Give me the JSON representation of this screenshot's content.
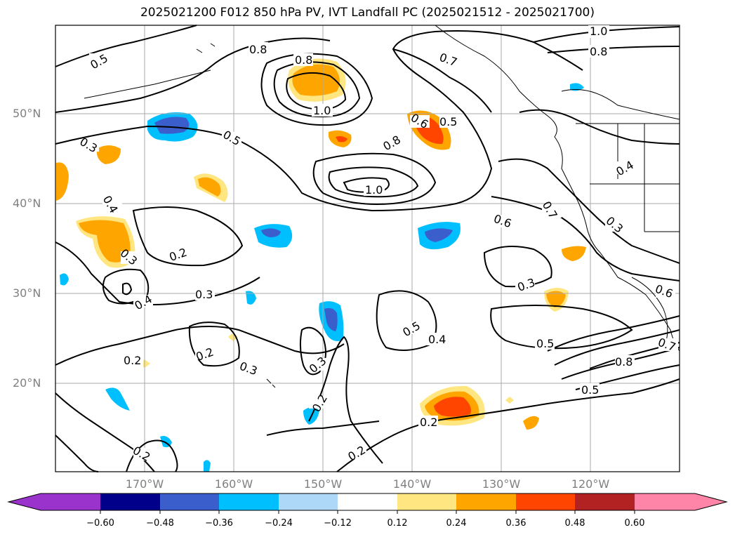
{
  "title": "2025021200 F012 850 hPa PV, IVT Landfall PC (2025021512 - 2025021700)",
  "lat_labels": [
    "50°N",
    "40°N",
    "30°N",
    "20°N"
  ],
  "lon_labels": [
    "170°W",
    "160°W",
    "150°W",
    "140°W",
    "130°W",
    "120°W"
  ],
  "contour_labels": [
    "0.5",
    "0.8",
    "1.0",
    "0.8",
    "0.7",
    "1.0",
    "0.8",
    "0.3",
    "0.5",
    "1.0",
    "0.6",
    "0.5",
    "0.8",
    "0.4",
    "0.3",
    "0.4",
    "0.2",
    "0.6",
    "0.7",
    "0.3",
    "0.3",
    "0.4",
    "0.3",
    "0.5",
    "0.4",
    "0.5",
    "0.6",
    "0.2",
    "0.2",
    "0.3",
    "0.3",
    "0.2",
    "0.2",
    "0.5",
    "0.8",
    "0.7",
    "0.2",
    "0.2"
  ],
  "colorbar": {
    "tick_labels": [
      "−0.60",
      "−0.48",
      "−0.36",
      "−0.24",
      "−0.12",
      "0.12",
      "0.24",
      "0.36",
      "0.48",
      "0.60"
    ],
    "colors": [
      "#9933cc",
      "#00008b",
      "#3a5fcd",
      "#00bfff",
      "#add8f7",
      "#ffffff",
      "#ffe680",
      "#ffa500",
      "#ff4500",
      "#b22222",
      "#ff85a8"
    ]
  }
}
